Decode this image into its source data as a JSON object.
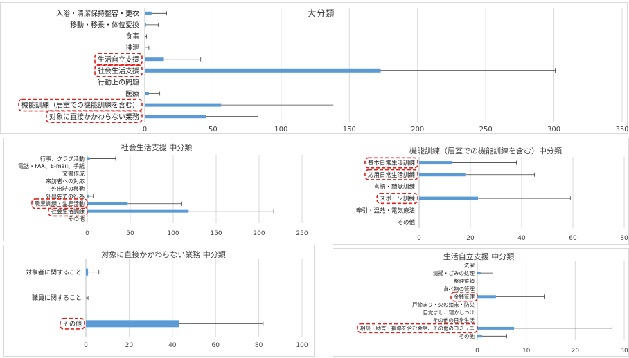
{
  "colors": {
    "bar": "#5b9bd5",
    "error": "#404040",
    "grid": "#d9d9d9",
    "highlight": "#e0201b"
  },
  "chart_data": [
    {
      "id": "c1",
      "type": "bar",
      "orientation": "horizontal",
      "title": "大分類",
      "categories": [
        "入浴・清潔保持整容・更衣",
        "移動・移乗・体位変換",
        "食事",
        "排泄",
        "生活自立支援",
        "社会生活支援",
        "行動上の問題",
        "医療",
        "機能訓練（居室での機能訓練を含む）",
        "対象に直接かかわらない業務"
      ],
      "values": [
        5,
        1,
        0.5,
        0.5,
        14,
        173,
        0,
        3,
        56,
        45
      ],
      "error": [
        11,
        9,
        0.8,
        2.5,
        27,
        128,
        0,
        8,
        82,
        38
      ],
      "xlim": [
        0,
        350
      ],
      "xticks": [
        "0",
        "50",
        "100",
        "150",
        "200",
        "250",
        "300",
        "350"
      ],
      "grid": true,
      "highlighted": [
        "生活自立支援",
        "社会生活支援",
        "機能訓練（居室での機能訓練を含む）",
        "対象に直接かかわらない業務"
      ]
    },
    {
      "id": "c2",
      "type": "bar",
      "orientation": "horizontal",
      "title": "社会生活支援 中分類",
      "categories": [
        "行事、クラブ活動",
        "電話・FAX、E-mail、手紙",
        "文書作成",
        "来訪者への対応",
        "外出時の移動",
        "外出先での行為",
        "職業訓練・生産活動",
        "社会生活訓練",
        "その他"
      ],
      "values": [
        3,
        0,
        0,
        0,
        0,
        2,
        47,
        118,
        0
      ],
      "error": [
        30,
        0,
        0,
        0,
        0,
        5,
        63,
        99,
        0
      ],
      "xlim": [
        0,
        250
      ],
      "xticks": [
        "0",
        "50",
        "100",
        "150",
        "200",
        "250"
      ],
      "grid": true,
      "highlighted": [
        "職業訓練・生産活動",
        "社会生活訓練"
      ]
    },
    {
      "id": "c3",
      "type": "bar",
      "orientation": "horizontal",
      "title": "機能訓練（居室での機能訓練を含む）中分類",
      "categories": [
        "基本日常生活訓練",
        "応用日常生活訓練",
        "言語・聴覚訓練",
        "スポーツ訓練",
        "牽引・温熱・電気療法",
        "その他"
      ],
      "values": [
        13,
        18,
        0,
        23,
        0,
        0
      ],
      "error": [
        25,
        27,
        0,
        36,
        0,
        0
      ],
      "xlim": [
        0,
        80
      ],
      "xticks": [
        "0",
        "20",
        "40",
        "60",
        "80"
      ],
      "grid": true,
      "highlighted": [
        "基本日常生活訓練",
        "応用日常生活訓練",
        "スポーツ訓練"
      ]
    },
    {
      "id": "c4",
      "type": "bar",
      "orientation": "horizontal",
      "title": "対象に直接かかわらない業務 中分類",
      "categories": [
        "対象者に関すること",
        "職員に関すること",
        "その他"
      ],
      "values": [
        1,
        0,
        43
      ],
      "error": [
        5,
        1,
        39
      ],
      "xlim": [
        0,
        100
      ],
      "xticks": [
        "0",
        "20",
        "40",
        "60",
        "80",
        "100"
      ],
      "grid": true,
      "highlighted": [
        "その他"
      ]
    },
    {
      "id": "c5",
      "type": "bar",
      "orientation": "horizontal",
      "title": "生活自立支援 中分類",
      "categories": [
        "洗濯",
        "清掃・ごみの処理",
        "整理整頓",
        "食べ物の管理",
        "金銭管理",
        "戸締まり・火の始末・防災",
        "目覚まし、寝かしつけ",
        "その他の日常生活",
        "相談・助言・指導を含む会話、その他のコミュニ",
        "その他"
      ],
      "values": [
        0,
        0.7,
        0,
        0,
        3.8,
        0,
        0,
        0,
        7.5,
        1
      ],
      "error": [
        0,
        2.5,
        0,
        0,
        10,
        0,
        0,
        0,
        20,
        5
      ],
      "xlim": [
        0,
        30
      ],
      "xticks": [
        "0",
        "10",
        "20",
        "30"
      ],
      "grid": true,
      "highlighted": [
        "金銭管理",
        "相談・助言・指導を含む会話、その他のコミュニ"
      ]
    }
  ]
}
